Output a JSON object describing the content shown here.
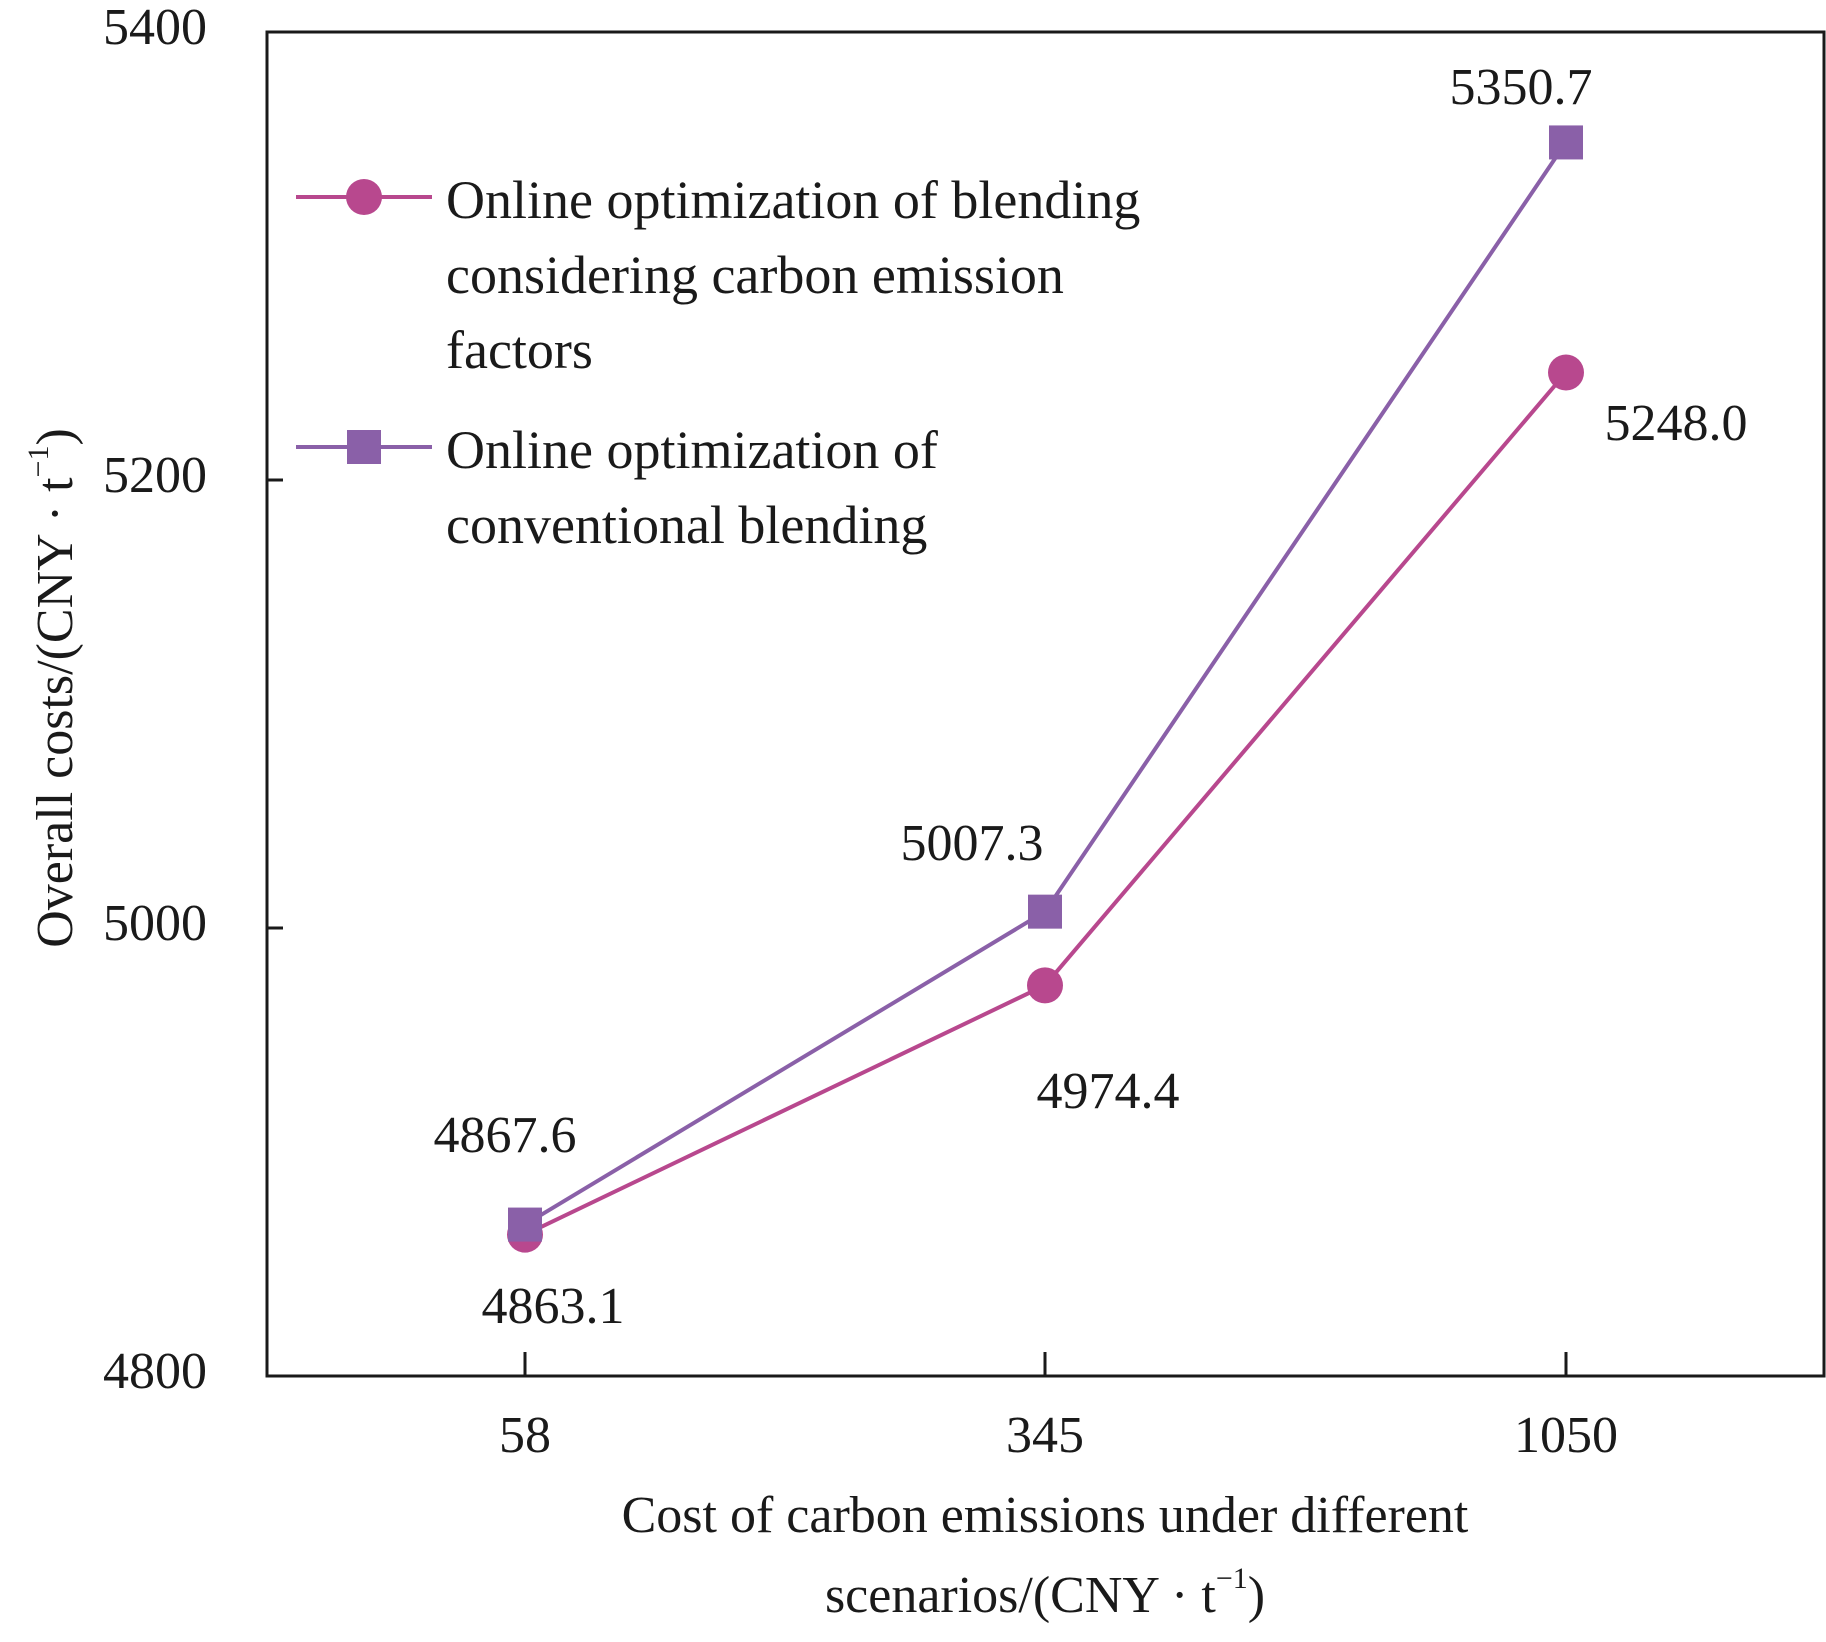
{
  "chart_data": {
    "type": "line",
    "categories": [
      "58",
      "345",
      "1050"
    ],
    "series": [
      {
        "name": "Online optimization of blending considering carbon emission factors",
        "legend_lines": [
          "Online optimization of blending",
          "considering carbon emission",
          "factors"
        ],
        "values": [
          4863.1,
          4974.4,
          5248.0
        ],
        "labels": [
          "4863.1",
          "4974.4",
          "5248.0"
        ],
        "marker": "circle",
        "color": "#b8488e"
      },
      {
        "name": "Online optimization of conventional blending",
        "legend_lines": [
          "Online optimization of",
          "conventional blending"
        ],
        "values": [
          4867.6,
          5007.3,
          5350.7
        ],
        "labels": [
          "4867.6",
          "5007.3",
          "5350.7"
        ],
        "marker": "square",
        "color": "#8a60a8"
      }
    ],
    "xlabel": {
      "line1": "Cost of carbon emissions under different",
      "line2_main": "scenarios/(CNY · t",
      "line2_sup": "−1",
      "line2_end": ")"
    },
    "ylabel": {
      "main": "Overall costs/(CNY · t",
      "sup": "−1",
      "end": ")"
    },
    "yticks": [
      "4800",
      "5000",
      "5200",
      "5400"
    ],
    "ylim": [
      4800,
      5400
    ],
    "legend_position": "top-left",
    "grid": false
  }
}
